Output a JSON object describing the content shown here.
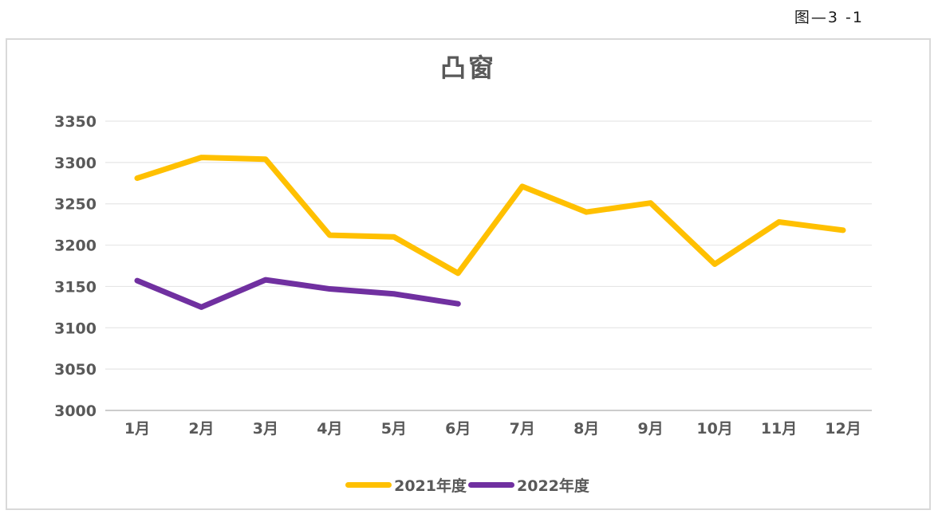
{
  "page": {
    "figure_label": "图—3 -1"
  },
  "chart_data": {
    "type": "line",
    "title": "凸窗",
    "categories": [
      "1月",
      "2月",
      "3月",
      "4月",
      "5月",
      "6月",
      "7月",
      "8月",
      "9月",
      "10月",
      "11月",
      "12月"
    ],
    "series": [
      {
        "name": "2021年度",
        "color": "#FFC000",
        "values": [
          3281,
          3306,
          3304,
          3212,
          3210,
          3166,
          3271,
          3240,
          3251,
          3177,
          3228,
          3218
        ]
      },
      {
        "name": "2022年度",
        "color": "#7030A0",
        "values": [
          3157,
          3125,
          3158,
          3147,
          3141,
          3129
        ]
      }
    ],
    "xlabel": "",
    "ylabel": "",
    "ylim": [
      3000,
      3350
    ],
    "ytick_step": 50,
    "grid": true,
    "legend_position": "bottom",
    "styles": {
      "text_color": "#595959",
      "grid_color": "#e6e6e6",
      "axis_color": "#c4c4c4",
      "panel_border_color": "#d9d9d9"
    }
  }
}
